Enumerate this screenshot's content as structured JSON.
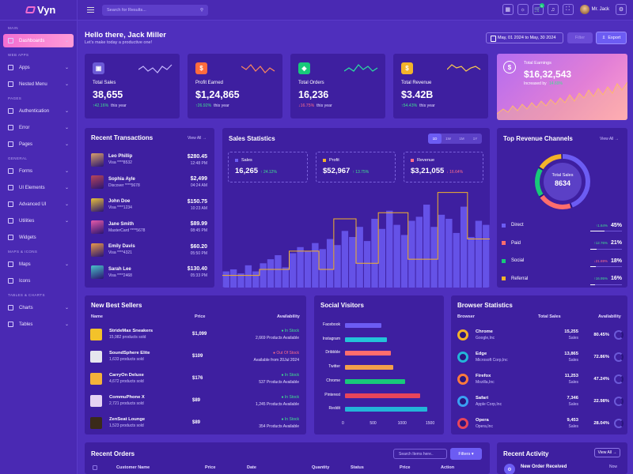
{
  "app": {
    "logo_text": "Vyn",
    "colors": {
      "bg": "#4f2fbd",
      "card": "#3e1fa0",
      "accent": "#6c5cf3",
      "pink": "#f36ed1",
      "up": "#3fe08f",
      "down": "#ff6d8a"
    }
  },
  "sidebar": {
    "sections": [
      {
        "title": "MAIN",
        "items": [
          {
            "label": "Dashboards",
            "active": true,
            "icon": "home-icon"
          }
        ]
      },
      {
        "title": "WEB APPS",
        "items": [
          {
            "label": "Apps",
            "icon": "grid-icon"
          },
          {
            "label": "Nested Menu",
            "icon": "layers-icon"
          }
        ]
      },
      {
        "title": "PAGES",
        "items": [
          {
            "label": "Authentication",
            "icon": "lock-icon"
          },
          {
            "label": "Error",
            "icon": "alert-icon"
          },
          {
            "label": "Pages",
            "icon": "file-icon"
          }
        ]
      },
      {
        "title": "GENERAL",
        "items": [
          {
            "label": "Forms",
            "icon": "form-icon"
          },
          {
            "label": "UI Elements",
            "icon": "box-icon"
          },
          {
            "label": "Advanced UI",
            "icon": "layers-icon"
          },
          {
            "label": "Utilities",
            "icon": "tool-icon"
          },
          {
            "label": "Widgets",
            "icon": "widget-icon"
          }
        ]
      },
      {
        "title": "MAPS & ICONS",
        "items": [
          {
            "label": "Maps",
            "icon": "map-icon"
          },
          {
            "label": "Icons",
            "icon": "star-icon"
          }
        ]
      },
      {
        "title": "TABLES & CHARTS",
        "items": [
          {
            "label": "Charts",
            "icon": "chart-icon"
          },
          {
            "label": "Tables",
            "icon": "table-icon"
          }
        ]
      }
    ]
  },
  "topbar": {
    "search_placeholder": "Search for Results...",
    "user_name": "Mr. Jack",
    "cart_badge": "5"
  },
  "header": {
    "greeting": "Hello there, Jack Miller",
    "subtitle": "Let's make today a productive one!",
    "date_range": "May, 01 2024 to May, 30 2024",
    "filter_label": "Filter",
    "export_label": "Export"
  },
  "stats": [
    {
      "label": "Total Sales",
      "value": "38,655",
      "change": "42.16%",
      "direction": "up",
      "period": "this year",
      "icon": "bag-icon",
      "icon_bg": "#6b5ad6",
      "spark": "#c7b9ff"
    },
    {
      "label": "Profit Earned",
      "value": "$1,24,865",
      "change": "26.92%",
      "direction": "up",
      "period": "this year",
      "icon": "dollar-icon",
      "icon_bg": "#ff6b3d",
      "spark": "#ff8a5c"
    },
    {
      "label": "Total Orders",
      "value": "16,236",
      "change": "16.75%",
      "direction": "down",
      "period": "this year",
      "icon": "cube-icon",
      "icon_bg": "#18c87a",
      "spark": "#2be0a1"
    },
    {
      "label": "Total Revenue",
      "value": "$3.42B",
      "change": "54.43%",
      "direction": "up",
      "period": "this year",
      "icon": "wallet-icon",
      "icon_bg": "#f3b32a",
      "spark": "#ffcf4d"
    }
  ],
  "earnings": {
    "label": "Total Earnings",
    "value": "$16,32,543",
    "caption": "Increased by",
    "change": "14.69%"
  },
  "transactions": {
    "title": "Recent Transactions",
    "view_all": "View All",
    "rows": [
      {
        "name": "Leo Phillip",
        "sub": "Visa ****8532",
        "amount": "$280.45",
        "time": "12:48 PM",
        "color": "#d9a06b"
      },
      {
        "name": "Sophia Ayle",
        "sub": "Discover ****5678",
        "amount": "$2,499",
        "time": "04:24 AM",
        "color": "#b8465a"
      },
      {
        "name": "John Doe",
        "sub": "Visa ****1234",
        "amount": "$150.75",
        "time": "10:23 AM",
        "color": "#e8c13a"
      },
      {
        "name": "Jane Smith",
        "sub": "MasterCard ****5678",
        "amount": "$89.99",
        "time": "08:45 PM",
        "color": "#e65aa8"
      },
      {
        "name": "Emily Davis",
        "sub": "Visa ****4321",
        "amount": "$60.20",
        "time": "05:50 PM",
        "color": "#e89a4a"
      },
      {
        "name": "Sarah Lee",
        "sub": "Visa ****2468",
        "amount": "$130.40",
        "time": "05:33 PM",
        "color": "#4ac2c9"
      }
    ]
  },
  "sales_statistics": {
    "title": "Sales Statistics",
    "tabs": [
      "1D",
      "1W",
      "1M",
      "1Y"
    ],
    "active_tab": "1D",
    "boxes": [
      {
        "label": "Sales",
        "value": "16,265",
        "change": "24.12%",
        "direction": "up",
        "color": "#6c5cf3"
      },
      {
        "label": "Profit",
        "value": "$52,967",
        "change": "13.75%",
        "direction": "up",
        "color": "#f3b32a"
      },
      {
        "label": "Revenue",
        "value": "$3,21,055",
        "change": "16.64%",
        "direction": "down",
        "color": "#ff6d8a"
      }
    ]
  },
  "chart_data": {
    "type": "bar",
    "bars": [
      8,
      9,
      7,
      11,
      8,
      12,
      14,
      16,
      10,
      17,
      20,
      18,
      22,
      19,
      24,
      21,
      28,
      25,
      30,
      23,
      34,
      29,
      38,
      31,
      26,
      33,
      35,
      41,
      30,
      36,
      34,
      27,
      40,
      25,
      33,
      31
    ],
    "line": [
      6,
      6,
      6,
      6,
      6,
      9,
      9,
      9,
      9,
      18,
      18,
      18,
      18,
      9,
      9,
      34,
      34,
      34,
      12,
      12,
      12,
      37,
      37,
      37,
      37,
      14,
      14,
      14,
      14,
      47,
      47,
      47,
      47,
      24,
      24,
      24
    ],
    "bar_color": "#6c5cf3",
    "line_color": "#f3b32a"
  },
  "revenue_channels": {
    "title": "Top Revenue Channels",
    "view_all": "View All",
    "center_label": "Total Sales",
    "center_value": "8634",
    "channels": [
      {
        "name": "Direct",
        "change": "1.64%",
        "direction": "up",
        "value": "45%",
        "fill": 0.45,
        "color": "#6c5cf3"
      },
      {
        "name": "Paid",
        "change": "12.76%",
        "direction": "up",
        "value": "21%",
        "fill": 0.21,
        "color": "#ff6d6d"
      },
      {
        "name": "Social",
        "change": "21.69%",
        "direction": "down",
        "value": "18%",
        "fill": 0.18,
        "color": "#18c87a"
      },
      {
        "name": "Referral",
        "change": "16.95%",
        "direction": "up",
        "value": "16%",
        "fill": 0.16,
        "color": "#f3b32a"
      }
    ]
  },
  "best_sellers": {
    "title": "New Best Sellers",
    "columns": [
      "Name",
      "Price",
      "Availability"
    ],
    "rows": [
      {
        "name": "StrideMax Sneakers",
        "sub": "15,982 products sold",
        "price": "$1,099",
        "status": "In Stock",
        "avail": "2,669 Products Available",
        "in": true,
        "color": "#f3c22a"
      },
      {
        "name": "SoundSphere Elite",
        "sub": "1,633 products sold",
        "price": "$109",
        "status": "Out Of Stock",
        "avail": "Available from 20Jul 2024",
        "in": false,
        "color": "#e6e6ee"
      },
      {
        "name": "CarryOn Deluxe",
        "sub": "4,672 products sold",
        "price": "$176",
        "status": "In Stock",
        "avail": "537 Products Available",
        "in": true,
        "color": "#f4b23a"
      },
      {
        "name": "CommuPhone X",
        "sub": "2,721 products sold",
        "price": "$89",
        "status": "In Stock",
        "avail": "1,245 Products Available",
        "in": true,
        "color": "#e5d2f3"
      },
      {
        "name": "ZenSeat Lounge",
        "sub": "1,523 products sold",
        "price": "$89",
        "status": "In Stock",
        "avail": "354 Products Available",
        "in": true,
        "color": "#3a2a1a"
      }
    ]
  },
  "social_visitors": {
    "title": "Social Visitors",
    "channels": [
      {
        "name": "Facebook",
        "value": 650,
        "color": "#6c5cf3"
      },
      {
        "name": "Instagram",
        "value": 750,
        "color": "#23c3d9"
      },
      {
        "name": "Dribbble",
        "value": 820,
        "color": "#ff6d6d"
      },
      {
        "name": "Twitter",
        "value": 870,
        "color": "#f3a04a"
      },
      {
        "name": "Chrome",
        "value": 1080,
        "color": "#18c87a"
      },
      {
        "name": "Pinterest",
        "value": 1350,
        "color": "#e8455a"
      },
      {
        "name": "Reddit",
        "value": 1470,
        "color": "#23b5d9"
      }
    ],
    "ticks": [
      "0",
      "500",
      "1000",
      "1500"
    ],
    "max": 1500
  },
  "browser_stats": {
    "title": "Browser Statistics",
    "columns": [
      "Browser",
      "Total Sales",
      "Availability"
    ],
    "rows": [
      {
        "name": "Chrome",
        "sub": "Google,Inc",
        "sales": "15,255",
        "sales_sub": "Sales",
        "avail": "80.45%",
        "icon": "chrome-icon",
        "color": "#f3b32a"
      },
      {
        "name": "Edge",
        "sub": "Microsoft Corp,Inc",
        "sales": "13,865",
        "sales_sub": "Sales",
        "avail": "72.86%",
        "icon": "edge-icon",
        "color": "#23b5d9"
      },
      {
        "name": "Firefox",
        "sub": "Mozilla,Inc",
        "sales": "11,253",
        "sales_sub": "Sales",
        "avail": "47.24%",
        "icon": "firefox-icon",
        "color": "#ff7a3d"
      },
      {
        "name": "Safari",
        "sub": "Apple Corp,Inc",
        "sales": "7,346",
        "sales_sub": "Sales",
        "avail": "22.98%",
        "icon": "safari-icon",
        "color": "#3aa0f3"
      },
      {
        "name": "Opera",
        "sub": "Opera,Inc",
        "sales": "9,453",
        "sales_sub": "Sales",
        "avail": "28.04%",
        "icon": "opera-icon",
        "color": "#e8455a"
      }
    ]
  },
  "recent_orders": {
    "title": "Recent Orders",
    "search_placeholder": "Search Items here..",
    "filters_label": "Filters",
    "columns": [
      "Customer Name",
      "Price",
      "Date",
      "Quantity",
      "Status",
      "Price",
      "Action"
    ]
  },
  "recent_activity": {
    "title": "Recent Activity",
    "view_all": "View All",
    "first_item": "New Order Received",
    "first_time": "Now"
  }
}
